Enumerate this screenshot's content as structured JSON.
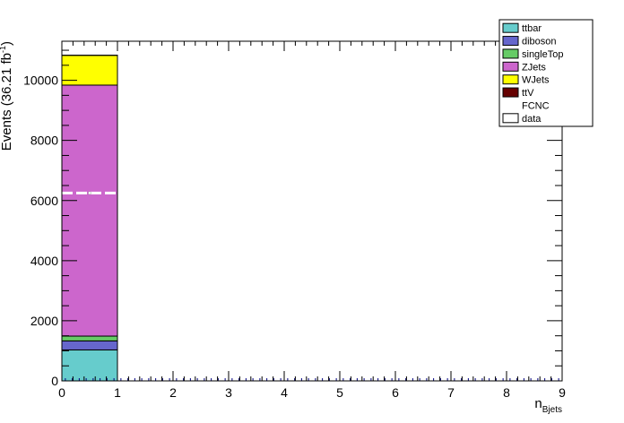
{
  "chart_data": {
    "type": "bar",
    "stacked": true,
    "x_bin_edges": [
      0,
      1,
      2,
      3,
      4,
      5,
      6,
      7,
      8,
      9
    ],
    "xlim": [
      0,
      9
    ],
    "ylim": [
      0,
      11300
    ],
    "x_ticks": [
      "0",
      "1",
      "2",
      "3",
      "4",
      "5",
      "6",
      "7",
      "8",
      "9"
    ],
    "y_ticks": [
      "0",
      "2000",
      "4000",
      "6000",
      "8000",
      "10000"
    ],
    "xlabel_main": "n",
    "xlabel_sub": "Bjets",
    "ylabel_main": "Events (36.21 fb",
    "ylabel_sup": "-1",
    "ylabel_close": ")",
    "series": [
      {
        "name": "ttbar",
        "color": "#66cccc",
        "values": [
          1030,
          0,
          0,
          0,
          0,
          0,
          0,
          0,
          0
        ]
      },
      {
        "name": "diboson",
        "color": "#6666cc",
        "values": [
          300,
          0,
          0,
          0,
          0,
          0,
          0,
          0,
          0
        ]
      },
      {
        "name": "singleTop",
        "color": "#66cc66",
        "values": [
          160,
          0,
          0,
          0,
          0,
          0,
          0,
          0,
          0
        ]
      },
      {
        "name": "ZJets",
        "color": "#cc66cc",
        "values": [
          8350,
          0,
          0,
          0,
          0,
          0,
          0,
          0,
          0
        ]
      },
      {
        "name": "WJets",
        "color": "#ffff00",
        "values": [
          990,
          0,
          0,
          0,
          0,
          0,
          0,
          0,
          0
        ]
      },
      {
        "name": "ttV",
        "color": "#660000",
        "values": [
          5,
          0,
          0,
          0,
          0,
          0,
          0,
          0,
          0
        ]
      }
    ],
    "overlay": {
      "name": "FCNC",
      "values": [
        6250,
        0,
        0,
        0,
        0,
        0,
        0,
        0,
        0
      ],
      "style": "dashed white line"
    },
    "data_points": {
      "name": "data",
      "values": [
        0,
        0,
        0,
        0,
        0,
        0,
        0,
        0,
        0
      ]
    },
    "legend": {
      "placement": "top-right",
      "entries": [
        {
          "label": "ttbar",
          "kind": "box",
          "color": "#66cccc"
        },
        {
          "label": "diboson",
          "kind": "box",
          "color": "#6666cc"
        },
        {
          "label": "singleTop",
          "kind": "box",
          "color": "#66cc66"
        },
        {
          "label": "ZJets",
          "kind": "box",
          "color": "#cc66cc"
        },
        {
          "label": "WJets",
          "kind": "box",
          "color": "#ffff00"
        },
        {
          "label": "ttV",
          "kind": "box",
          "color": "#660000"
        },
        {
          "label": "FCNC",
          "kind": "line",
          "color": "#ffffff"
        },
        {
          "label": "data",
          "kind": "box",
          "color": "#ffffff"
        }
      ]
    }
  }
}
